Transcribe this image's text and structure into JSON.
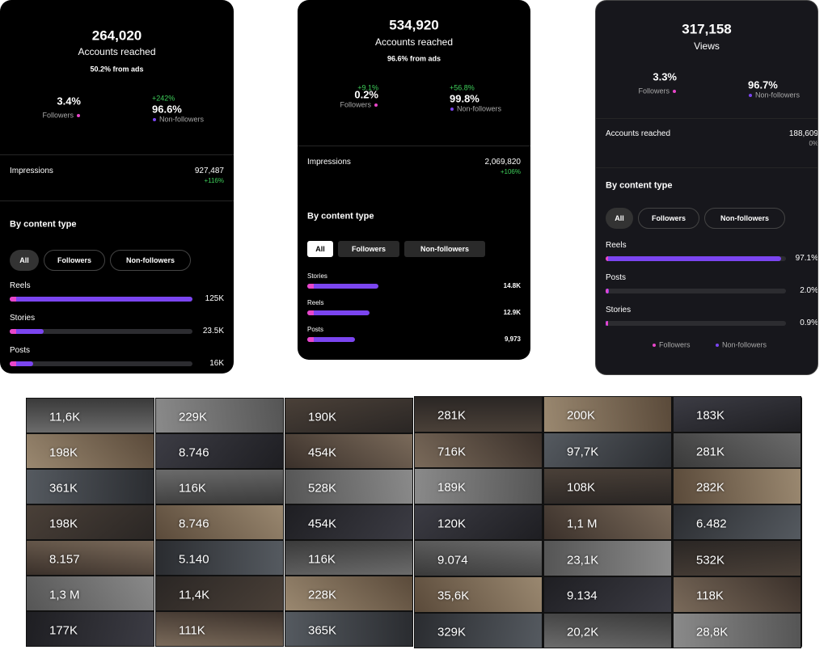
{
  "cards": [
    {
      "stat": "264,020",
      "stat_label": "Accounts reached",
      "note": "50.2% from ads",
      "followers": {
        "name": "Followers",
        "value": 3.4,
        "label": "3.4%"
      },
      "non_followers": {
        "name": "Non-followers",
        "value": 96.6,
        "label": "96.6%",
        "change": "+242%"
      },
      "metric": {
        "name": "Impressions",
        "value": "927,487",
        "change": "+116%"
      },
      "section": "By content type",
      "filters": [
        "All",
        "Followers",
        "Non-followers"
      ],
      "bars": [
        {
          "name": "Reels",
          "value": 125000,
          "label": "125K"
        },
        {
          "name": "Stories",
          "value": 23500,
          "label": "23.5K"
        },
        {
          "name": "Posts",
          "value": 16000,
          "label": "16K"
        }
      ]
    },
    {
      "stat": "534,920",
      "stat_label": "Accounts reached",
      "note": "96.6% from ads",
      "followers": {
        "name": "Followers",
        "value": 0.2,
        "label": "0.2%",
        "change": "+9.1%"
      },
      "non_followers": {
        "name": "Non-followers",
        "value": 99.8,
        "label": "99.8%",
        "change": "+56.8%"
      },
      "metric": {
        "name": "Impressions",
        "value": "2,069,820",
        "change": "+106%"
      },
      "section": "By content type",
      "filters": [
        "All",
        "Followers",
        "Non-followers"
      ],
      "bars": [
        {
          "name": "Stories",
          "value": 14800,
          "label": "14.8K"
        },
        {
          "name": "Reels",
          "value": 12900,
          "label": "12.9K"
        },
        {
          "name": "Posts",
          "value": 9973,
          "label": "9,973"
        }
      ]
    },
    {
      "stat": "317,158",
      "stat_label": "Views",
      "followers": {
        "name": "Followers",
        "value": 3.3,
        "label": "3.3%"
      },
      "non_followers": {
        "name": "Non-followers",
        "value": 96.7,
        "label": "96.7%"
      },
      "metric": {
        "name": "Accounts reached",
        "value": "188,609",
        "change": "0%"
      },
      "section": "By content type",
      "filters": [
        "All",
        "Followers",
        "Non-followers"
      ],
      "bars": [
        {
          "name": "Reels",
          "value": 97.1,
          "label": "97.1%"
        },
        {
          "name": "Posts",
          "value": 2.0,
          "label": "2.0%"
        },
        {
          "name": "Stories",
          "value": 0.9,
          "label": "0.9%"
        }
      ],
      "legend": [
        "Followers",
        "Non-followers"
      ]
    }
  ],
  "grids": [
    {
      "rows": [
        [
          "11,6K",
          "229K",
          "190K"
        ],
        [
          "198K",
          "8.746",
          "454K"
        ],
        [
          "361K",
          "116K",
          "528K"
        ],
        [
          "198K",
          "8.746",
          "454K"
        ],
        [
          "8.157",
          "5.140",
          "116K"
        ],
        [
          "1,3 M",
          "11,4K",
          "228K"
        ],
        [
          "177K",
          "111K",
          "365K"
        ]
      ]
    },
    {
      "rows": [
        [
          "281K",
          "200K",
          "183K"
        ],
        [
          "716K",
          "97,7K",
          "281K"
        ],
        [
          "189K",
          "108K",
          "282K"
        ],
        [
          "120K",
          "1,1 M",
          "6.482"
        ],
        [
          "9.074",
          "23,1K",
          "532K"
        ],
        [
          "35,6K",
          "9.134",
          "118K"
        ],
        [
          "329K",
          "20,2K",
          "28,8K"
        ]
      ]
    }
  ]
}
